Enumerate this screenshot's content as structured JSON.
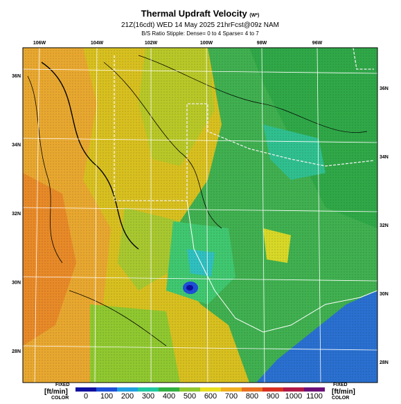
{
  "title": "Thermal Updraft Velocity",
  "title_unit": "(W*)",
  "subtitle": "21Z(16cdt) WED 14 May 2025 21hrFcst@09z NAM",
  "note": "B/S Ratio Stipple: Dense= 0 to 4 Sparse= 4 to 7",
  "lon_labels": [
    "106W",
    "104W",
    "102W",
    "100W",
    "98W",
    "96W"
  ],
  "lat_labels_left": [
    "36N",
    "34N",
    "32N",
    "30N",
    "28N"
  ],
  "lat_labels_right": [
    "36N",
    "34N",
    "32N",
    "30N",
    "28N"
  ],
  "colorbar": {
    "ticks": [
      0,
      100,
      200,
      300,
      400,
      500,
      600,
      700,
      800,
      900,
      1000,
      1100
    ],
    "colors": [
      "#1010a0",
      "#1e50d8",
      "#20a0e0",
      "#20c8a0",
      "#30b040",
      "#90c830",
      "#e8e020",
      "#f0b020",
      "#e87020",
      "#d83020",
      "#b01848",
      "#6a1078"
    ]
  },
  "legend_left": {
    "top": "FIXED",
    "unit": "[ft/min]",
    "bottom": "COLOR"
  },
  "legend_right": {
    "top": "FIXED",
    "unit": "[ft/min]",
    "bottom": "COLOR"
  }
}
